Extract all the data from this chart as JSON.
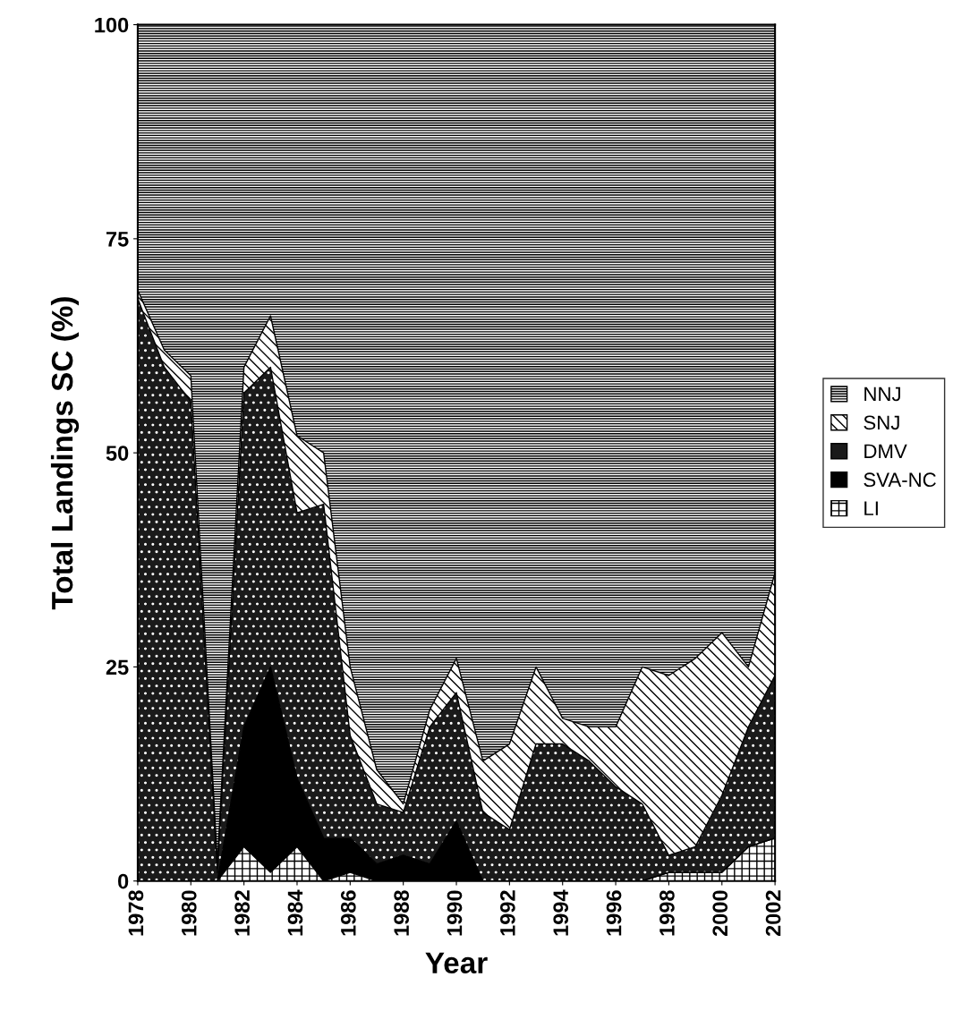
{
  "chart_data": {
    "type": "area",
    "stacked": true,
    "xlabel": "Year",
    "ylabel": "Total Landings SC (%)",
    "x": [
      1978,
      1979,
      1980,
      1981,
      1982,
      1983,
      1984,
      1985,
      1986,
      1987,
      1988,
      1989,
      1990,
      1991,
      1992,
      1993,
      1994,
      1995,
      1996,
      1997,
      1998,
      1999,
      2000,
      2001,
      2002
    ],
    "xlim": [
      1978,
      2002
    ],
    "xticks": [
      1978,
      1980,
      1982,
      1984,
      1986,
      1988,
      1990,
      1992,
      1994,
      1996,
      1998,
      2000,
      2002
    ],
    "ylim": [
      0,
      100
    ],
    "yticks": [
      0,
      25,
      50,
      75,
      100
    ],
    "grid": false,
    "legend": "right",
    "series": [
      {
        "name": "LI",
        "color": "#ffffff",
        "values": [
          0,
          0,
          0,
          0,
          4,
          1,
          4,
          0,
          1,
          0,
          0,
          0,
          0,
          0,
          0,
          0,
          0,
          0,
          0,
          0,
          1,
          1,
          1,
          4,
          5
        ]
      },
      {
        "name": "SVA-NC",
        "color": "#000000",
        "values": [
          0,
          0,
          0,
          0,
          14,
          24,
          8,
          5,
          4,
          2,
          3,
          2,
          7,
          0,
          0,
          0,
          0,
          0,
          0,
          0,
          0,
          0,
          0,
          0,
          0
        ]
      },
      {
        "name": "DMV",
        "color": "#1a1a1a",
        "values": [
          68,
          60,
          56,
          1,
          39,
          35,
          31,
          39,
          12,
          7,
          5,
          16,
          15,
          8,
          6,
          16,
          16,
          14,
          11,
          9,
          2,
          3,
          9,
          14,
          19
        ]
      },
      {
        "name": "SNJ",
        "color": "#ffffff",
        "values": [
          1,
          2,
          3,
          1,
          3,
          6,
          9,
          6,
          8,
          4,
          1,
          2,
          4,
          6,
          10,
          9,
          3,
          4,
          7,
          16,
          21,
          22,
          19,
          7,
          12
        ]
      },
      {
        "name": "NNJ",
        "color": "#ffffff",
        "values": [
          31,
          38,
          41,
          98,
          40,
          34,
          48,
          50,
          75,
          87,
          91,
          80,
          74,
          86,
          84,
          75,
          81,
          82,
          82,
          75,
          76,
          74,
          71,
          75,
          64
        ]
      }
    ]
  }
}
